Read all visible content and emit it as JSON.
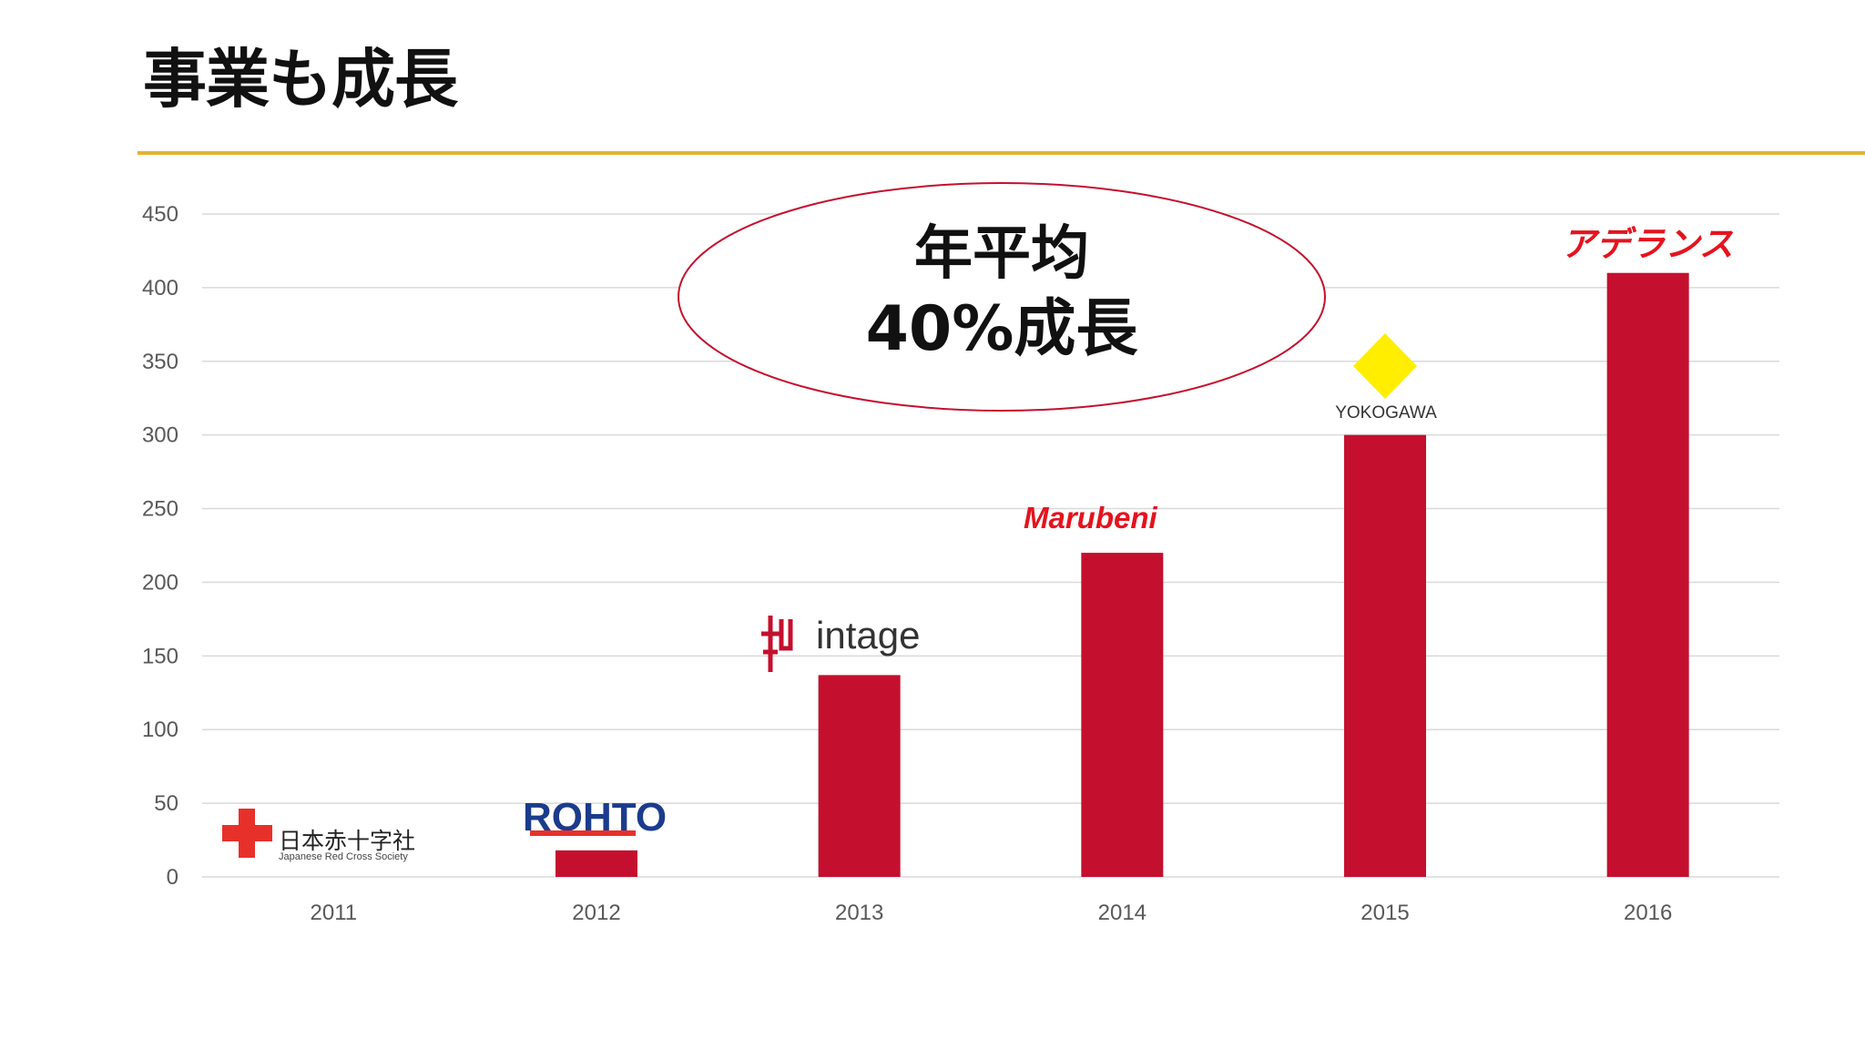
{
  "header": {
    "title": "事業も成長"
  },
  "callout": {
    "line1": "年平均",
    "line2": "40%成長"
  },
  "colors": {
    "bar": "#C4102E",
    "rule": "#E3B32A",
    "callout_border": "#C4102E"
  },
  "logos": {
    "red_cross": {
      "name": "日本赤十字社",
      "subtitle": "Japanese Red Cross Society"
    },
    "rohto": {
      "name": "ROHTO"
    },
    "intage": {
      "name": "intage"
    },
    "marubeni": {
      "name": "Marubeni"
    },
    "yokogawa": {
      "name": "YOKOGAWA"
    },
    "aderans": {
      "name": "アデランス"
    }
  },
  "chart_data": {
    "type": "bar",
    "categories": [
      "2011",
      "2012",
      "2013",
      "2014",
      "2015",
      "2016"
    ],
    "values": [
      0,
      18,
      137,
      220,
      300,
      410
    ],
    "title": "",
    "xlabel": "",
    "ylabel": "",
    "ylim": [
      0,
      450
    ],
    "yticks": [
      0,
      50,
      100,
      150,
      200,
      250,
      300,
      350,
      400,
      450
    ],
    "grid": true
  }
}
